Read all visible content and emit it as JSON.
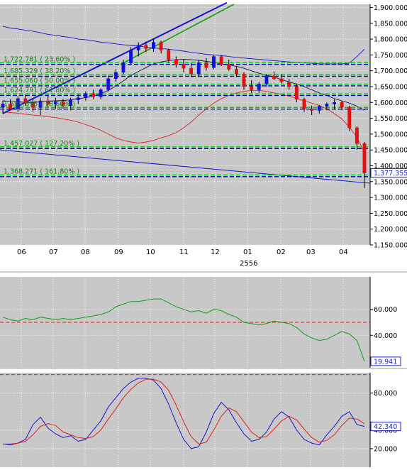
{
  "colors": {
    "background": "#ffffff",
    "panel_bg": "#c8c8c8",
    "up_candle": "#1010e0",
    "down_candle": "#e01010",
    "blue_line": "#1515d0",
    "red_line": "#e02020",
    "green_line": "#10a010",
    "fib_green": "#00d000",
    "fib_blue": "#0000c0",
    "fib_text": "#1a7a1a",
    "price_label_border": "#2020c0"
  },
  "chart_data": [
    {
      "type": "candlestick",
      "name": "price",
      "x_ticks": [
        "06",
        "07",
        "08",
        "09",
        "10",
        "11",
        "12",
        "01",
        "02",
        "03",
        "04"
      ],
      "x_sublabel": "2556",
      "y_ticks": [
        "1,900.000",
        "1,850.000",
        "1,800.000",
        "1,750.000",
        "1,700.000",
        "1,650.000",
        "1,600.000",
        "1,550.000",
        "1,500.000",
        "1,450.000",
        "1,400.000",
        "1,350.000",
        "1,300.000",
        "1,250.000",
        "1,200.000",
        "1,150.000"
      ],
      "ylim": [
        1150,
        1910
      ],
      "fib_levels": [
        {
          "label": "1,722.781 ( 23.60% )",
          "value": 1722.781
        },
        {
          "label": "1,685.329 ( 38.20% )",
          "value": 1685.329
        },
        {
          "label": "1,655.060 ( 50.00% )",
          "value": 1655.06
        },
        {
          "label": "1,624.791 ( 61.80% )",
          "value": 1624.791
        },
        {
          "label": "1,581.695 ( 78.60% )",
          "value": 1581.695
        },
        {
          "label": "1,457.027 ( 127.20% )",
          "value": 1457.027
        },
        {
          "label": "1,368.271 ( 161.80% )",
          "value": 1368.271
        }
      ],
      "last_price": "1,377.355",
      "candles": [
        {
          "o": 1585,
          "h": 1605,
          "l": 1565,
          "c": 1595
        },
        {
          "o": 1595,
          "h": 1610,
          "l": 1575,
          "c": 1580
        },
        {
          "o": 1580,
          "h": 1620,
          "l": 1570,
          "c": 1612
        },
        {
          "o": 1612,
          "h": 1625,
          "l": 1590,
          "c": 1598
        },
        {
          "o": 1598,
          "h": 1610,
          "l": 1570,
          "c": 1585
        },
        {
          "o": 1585,
          "h": 1615,
          "l": 1560,
          "c": 1605
        },
        {
          "o": 1605,
          "h": 1625,
          "l": 1585,
          "c": 1595
        },
        {
          "o": 1595,
          "h": 1615,
          "l": 1580,
          "c": 1602
        },
        {
          "o": 1602,
          "h": 1612,
          "l": 1580,
          "c": 1590
        },
        {
          "o": 1590,
          "h": 1615,
          "l": 1575,
          "c": 1608
        },
        {
          "o": 1608,
          "h": 1625,
          "l": 1595,
          "c": 1615
        },
        {
          "o": 1615,
          "h": 1635,
          "l": 1605,
          "c": 1628
        },
        {
          "o": 1628,
          "h": 1640,
          "l": 1610,
          "c": 1618
        },
        {
          "o": 1618,
          "h": 1645,
          "l": 1610,
          "c": 1640
        },
        {
          "o": 1640,
          "h": 1685,
          "l": 1635,
          "c": 1675
        },
        {
          "o": 1675,
          "h": 1705,
          "l": 1665,
          "c": 1695
        },
        {
          "o": 1695,
          "h": 1735,
          "l": 1690,
          "c": 1725
        },
        {
          "o": 1725,
          "h": 1775,
          "l": 1720,
          "c": 1765
        },
        {
          "o": 1765,
          "h": 1790,
          "l": 1745,
          "c": 1780
        },
        {
          "o": 1780,
          "h": 1792,
          "l": 1760,
          "c": 1770
        },
        {
          "o": 1770,
          "h": 1800,
          "l": 1760,
          "c": 1790
        },
        {
          "o": 1790,
          "h": 1795,
          "l": 1755,
          "c": 1765
        },
        {
          "o": 1765,
          "h": 1770,
          "l": 1725,
          "c": 1735
        },
        {
          "o": 1735,
          "h": 1745,
          "l": 1710,
          "c": 1720
        },
        {
          "o": 1720,
          "h": 1735,
          "l": 1695,
          "c": 1708
        },
        {
          "o": 1708,
          "h": 1725,
          "l": 1680,
          "c": 1690
        },
        {
          "o": 1690,
          "h": 1735,
          "l": 1680,
          "c": 1725
        },
        {
          "o": 1725,
          "h": 1740,
          "l": 1700,
          "c": 1710
        },
        {
          "o": 1710,
          "h": 1750,
          "l": 1705,
          "c": 1745
        },
        {
          "o": 1745,
          "h": 1750,
          "l": 1715,
          "c": 1720
        },
        {
          "o": 1720,
          "h": 1735,
          "l": 1700,
          "c": 1705
        },
        {
          "o": 1705,
          "h": 1715,
          "l": 1680,
          "c": 1690
        },
        {
          "o": 1690,
          "h": 1695,
          "l": 1640,
          "c": 1650
        },
        {
          "o": 1650,
          "h": 1670,
          "l": 1630,
          "c": 1640
        },
        {
          "o": 1640,
          "h": 1665,
          "l": 1630,
          "c": 1658
        },
        {
          "o": 1658,
          "h": 1690,
          "l": 1650,
          "c": 1684
        },
        {
          "o": 1684,
          "h": 1698,
          "l": 1670,
          "c": 1675
        },
        {
          "o": 1675,
          "h": 1690,
          "l": 1660,
          "c": 1665
        },
        {
          "o": 1665,
          "h": 1675,
          "l": 1640,
          "c": 1650
        },
        {
          "o": 1650,
          "h": 1660,
          "l": 1600,
          "c": 1610
        },
        {
          "o": 1610,
          "h": 1615,
          "l": 1570,
          "c": 1580
        },
        {
          "o": 1580,
          "h": 1590,
          "l": 1560,
          "c": 1575
        },
        {
          "o": 1575,
          "h": 1592,
          "l": 1565,
          "c": 1588
        },
        {
          "o": 1588,
          "h": 1600,
          "l": 1575,
          "c": 1595
        },
        {
          "o": 1595,
          "h": 1610,
          "l": 1580,
          "c": 1600
        },
        {
          "o": 1600,
          "h": 1605,
          "l": 1575,
          "c": 1585
        },
        {
          "o": 1585,
          "h": 1590,
          "l": 1510,
          "c": 1520
        },
        {
          "o": 1520,
          "h": 1525,
          "l": 1450,
          "c": 1470
        },
        {
          "o": 1470,
          "h": 1475,
          "l": 1330,
          "c": 1377
        }
      ],
      "series": [
        {
          "name": "upper-band",
          "values": [
            1840,
            1835,
            1832,
            1828,
            1825,
            1820,
            1815,
            1812,
            1808,
            1805,
            1800,
            1798,
            1795,
            1790,
            1788,
            1785,
            1782,
            1780,
            1778,
            1775,
            1772,
            1770,
            1768,
            1765,
            1762,
            1758,
            1755,
            1752,
            1750,
            1748,
            1745,
            1742,
            1740,
            1738,
            1736,
            1734,
            1732,
            1730,
            1728,
            1726,
            1725,
            1724,
            1722,
            1722,
            1722,
            1722,
            1724,
            1745,
            1768
          ]
        },
        {
          "name": "mid-band",
          "values": [
            1605,
            1603,
            1602,
            1600,
            1600,
            1602,
            1604,
            1605,
            1606,
            1608,
            1612,
            1615,
            1620,
            1628,
            1638,
            1652,
            1668,
            1685,
            1698,
            1710,
            1722,
            1728,
            1732,
            1735,
            1736,
            1735,
            1733,
            1730,
            1726,
            1722,
            1718,
            1714,
            1708,
            1700,
            1692,
            1686,
            1680,
            1672,
            1665,
            1658,
            1650,
            1640,
            1630,
            1622,
            1612,
            1605,
            1598,
            1588,
            1575
          ]
        },
        {
          "name": "lower-band",
          "values": [
            1570,
            1568,
            1566,
            1563,
            1560,
            1558,
            1555,
            1552,
            1548,
            1544,
            1538,
            1530,
            1522,
            1512,
            1500,
            1488,
            1480,
            1475,
            1472,
            1475,
            1480,
            1488,
            1495,
            1505,
            1520,
            1538,
            1560,
            1580,
            1598,
            1612,
            1622,
            1630,
            1635,
            1638,
            1638,
            1635,
            1630,
            1626,
            1620,
            1612,
            1605,
            1598,
            1590,
            1580,
            1565,
            1548,
            1522,
            1490,
            1440
          ]
        }
      ]
    },
    {
      "type": "line",
      "name": "rsi",
      "y_ticks": [
        "60.000",
        "40.000"
      ],
      "ylim": [
        15,
        85
      ],
      "ref_level": 50,
      "last_value": "19.941",
      "values": [
        54,
        52,
        51,
        53,
        52,
        54,
        53,
        52,
        53,
        52,
        53,
        54,
        55,
        56,
        58,
        62,
        64,
        66,
        66,
        67,
        68,
        68,
        65,
        62,
        60,
        58,
        59,
        57,
        60,
        59,
        56,
        54,
        50,
        49,
        48,
        49,
        51,
        50,
        49,
        46,
        41,
        38,
        36,
        37,
        40,
        43,
        41,
        36,
        20
      ]
    },
    {
      "type": "line",
      "name": "stochastic",
      "y_ticks": [
        "80.000",
        "40.000",
        "20.000"
      ],
      "ylim": [
        0,
        102
      ],
      "ref_level": 100,
      "last_value": "42.340",
      "series": [
        {
          "name": "k",
          "values": [
            25,
            24,
            26,
            30,
            46,
            54,
            42,
            36,
            32,
            34,
            28,
            30,
            40,
            50,
            65,
            75,
            85,
            92,
            96,
            96,
            94,
            85,
            68,
            48,
            30,
            20,
            22,
            38,
            58,
            70,
            62,
            48,
            36,
            28,
            30,
            38,
            52,
            60,
            54,
            40,
            30,
            26,
            24,
            35,
            44,
            55,
            60,
            46,
            44
          ]
        },
        {
          "name": "d",
          "values": [
            25,
            25,
            26,
            28,
            35,
            44,
            47,
            45,
            38,
            35,
            32,
            31,
            33,
            40,
            52,
            63,
            75,
            84,
            91,
            95,
            95,
            92,
            83,
            67,
            49,
            33,
            25,
            27,
            40,
            55,
            64,
            60,
            49,
            38,
            32,
            33,
            41,
            50,
            55,
            51,
            41,
            32,
            27,
            29,
            35,
            45,
            53,
            52,
            47
          ]
        }
      ]
    }
  ]
}
